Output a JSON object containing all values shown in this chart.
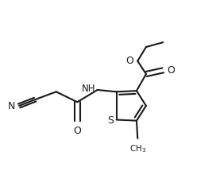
{
  "background_color": "#ffffff",
  "line_color": "#1a1a1a",
  "line_width": 1.5,
  "figsize": [
    2.72,
    2.4
  ],
  "dpi": 100,
  "xlim": [
    0,
    1
  ],
  "ylim": [
    0,
    1
  ]
}
